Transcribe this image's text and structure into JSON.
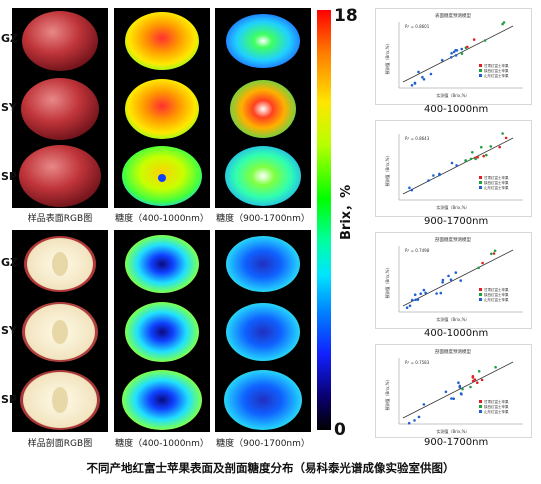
{
  "row_labels_top": [
    "GZ",
    "SY",
    "SP"
  ],
  "row_labels_bottom": [
    "GZ",
    "SY",
    "SP"
  ],
  "captions": {
    "rgb_surface": "样品表面RGB图",
    "vnir_surface": "糖度（400-1000nm）",
    "swir_surface": "糖度（900-1700nm）",
    "rgb_section": "样品剖面RGB图",
    "vnir_section": "糖度（400-1000nm）",
    "swir_section": "糖度（900-1700nm）"
  },
  "colorbar": {
    "max": "18",
    "min": "0",
    "label": "Brix，%",
    "colors": [
      "#ff0000",
      "#ffe600",
      "#00ff00",
      "#00e5ff",
      "#0080ff",
      "#0a0070",
      "#000000"
    ]
  },
  "plots": [
    {
      "title": "表面糖度预测模型",
      "r2": "R² = 0.8601",
      "xlabel": "实测值（Brix,%）",
      "ylabel": "预测值（Brix,%）",
      "legend": [
        "甘肃红富士苹果",
        "陕西红富士苹果",
        "山东红富士苹果"
      ],
      "subtitle": "400-1000nm"
    },
    {
      "title": "",
      "r2": "R² = 0.8643",
      "xlabel": "实测值（Brix,%）",
      "ylabel": "预测值（Brix,%）",
      "legend": [
        "甘肃红富士苹果",
        "陕西红富士苹果",
        "山东红富士苹果"
      ],
      "subtitle": "900-1700nm"
    },
    {
      "title": "剖面糖度预测模型",
      "r2": "R² = 0.7498",
      "xlabel": "实测值（Brix,%）",
      "ylabel": "预测值（Brix,%）",
      "legend": [
        "甘肃红富士苹果",
        "陕西红富士苹果",
        "山东红富士苹果"
      ],
      "subtitle": "400-1000nm"
    },
    {
      "title": "剖面糖度预测模型",
      "r2": "R² = 0.7583",
      "xlabel": "实测值（Brix,%）",
      "ylabel": "预测值（Brix,%）",
      "legend": [
        "甘肃红富士苹果",
        "陕西红富士苹果",
        "山东红富士苹果"
      ],
      "subtitle": "900-1700nm"
    }
  ],
  "series_colors": {
    "gansu": "#e02020",
    "shaanxi": "#20a040",
    "shandong": "#2060d0"
  },
  "footer": "不同产地红富士苹果表面及剖面糖度分布（易科泰光谱成像实验室供图）"
}
